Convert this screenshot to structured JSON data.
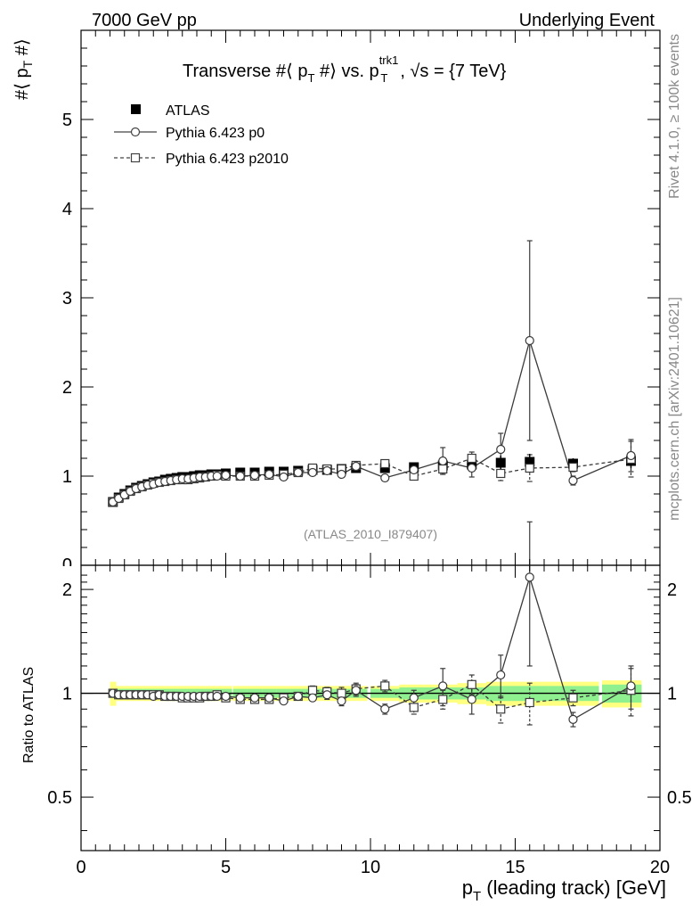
{
  "header": {
    "left": "7000 GeV pp",
    "right": "Underlying Event"
  },
  "side": {
    "rivet": "Rivet 4.1.0, ≥ 100k events",
    "site": "mcplots.cern.ch [arXiv:2401.10621]"
  },
  "watermark": "(ATLAS_2010_I879407)",
  "title": {
    "part1": "Transverse #⟨ p",
    "part1_sub": "T",
    "part2": " #⟩ vs. p",
    "sup": "trk1",
    "sub": "T",
    "part3": ", √s = {7 TeV}"
  },
  "main_ylabel": {
    "a": "#⟨ p",
    "sub": "T",
    "b": " #⟩"
  },
  "ratio_ylabel": "Ratio to ATLAS",
  "xlabel": {
    "a": "p",
    "sub": "T",
    "b": " (leading track) [GeV]"
  },
  "legend": [
    {
      "label": "ATLAS",
      "style": "data"
    },
    {
      "label": "Pythia 6.423 p0",
      "style": "circle-solid"
    },
    {
      "label": "Pythia 6.423 p2010",
      "style": "square-dashed"
    }
  ],
  "chart_data": [
    {
      "type": "line",
      "panel": "main",
      "title": "Transverse #⟨ pT #⟩ vs. pT^trk1, √s = {7 TeV}",
      "xlabel": "pT (leading track) [GeV]",
      "ylabel": "#⟨ pT #⟩",
      "xlim": [
        0,
        20
      ],
      "ylim": [
        0,
        6
      ],
      "yticks": [
        1,
        2,
        3,
        4,
        5
      ],
      "ytick_labels": [
        "1",
        "2",
        "3",
        "4",
        "5"
      ],
      "xticks": [
        0,
        5,
        10,
        15,
        20
      ],
      "xtick_labels": [
        "0",
        "5",
        "10",
        "15",
        "20"
      ],
      "x": [
        1.1,
        1.3,
        1.5,
        1.7,
        1.9,
        2.1,
        2.3,
        2.5,
        2.7,
        2.9,
        3.1,
        3.3,
        3.5,
        3.7,
        3.9,
        4.1,
        4.3,
        4.5,
        4.7,
        5.0,
        5.5,
        6.0,
        6.5,
        7.0,
        7.5,
        8.0,
        8.5,
        9.0,
        9.5,
        10.5,
        11.5,
        12.5,
        13.5,
        14.5,
        15.5,
        17.0,
        19.0
      ],
      "series": [
        {
          "name": "ATLAS",
          "values": [
            0.71,
            0.76,
            0.8,
            0.84,
            0.87,
            0.89,
            0.91,
            0.93,
            0.94,
            0.96,
            0.97,
            0.98,
            0.99,
            0.99,
            1.0,
            1.01,
            1.01,
            1.02,
            1.02,
            1.03,
            1.04,
            1.04,
            1.05,
            1.05,
            1.06,
            1.07,
            1.07,
            1.08,
            1.09,
            1.09,
            1.1,
            1.12,
            1.13,
            1.15,
            1.16,
            1.14,
            1.17
          ],
          "errors": [
            0.02,
            0.02,
            0.02,
            0.02,
            0.02,
            0.02,
            0.02,
            0.02,
            0.02,
            0.02,
            0.02,
            0.02,
            0.02,
            0.02,
            0.02,
            0.02,
            0.02,
            0.02,
            0.02,
            0.02,
            0.02,
            0.02,
            0.02,
            0.02,
            0.02,
            0.02,
            0.02,
            0.02,
            0.03,
            0.03,
            0.04,
            0.05,
            0.06,
            0.08,
            0.09,
            0.06,
            0.08
          ]
        },
        {
          "name": "Pythia 6.423 p0",
          "values": [
            0.71,
            0.75,
            0.79,
            0.83,
            0.86,
            0.88,
            0.9,
            0.91,
            0.93,
            0.94,
            0.95,
            0.96,
            0.97,
            0.97,
            0.98,
            0.99,
            0.99,
            1.0,
            1.0,
            1.01,
            1.0,
            1.01,
            1.02,
            0.99,
            1.04,
            1.04,
            1.06,
            1.02,
            1.11,
            0.98,
            1.07,
            1.17,
            1.09,
            1.3,
            2.52,
            0.95,
            1.23
          ],
          "errors": [
            0.01,
            0.01,
            0.01,
            0.01,
            0.01,
            0.01,
            0.01,
            0.01,
            0.01,
            0.01,
            0.01,
            0.01,
            0.01,
            0.01,
            0.01,
            0.01,
            0.01,
            0.01,
            0.01,
            0.01,
            0.01,
            0.01,
            0.02,
            0.02,
            0.03,
            0.03,
            0.03,
            0.03,
            0.04,
            0.03,
            0.06,
            0.15,
            0.1,
            0.18,
            1.12,
            0.05,
            0.18
          ]
        },
        {
          "name": "Pythia 6.423 p2010",
          "values": [
            0.71,
            0.75,
            0.79,
            0.83,
            0.86,
            0.88,
            0.9,
            0.92,
            0.93,
            0.94,
            0.95,
            0.96,
            0.96,
            0.96,
            0.97,
            0.98,
            0.99,
            1.0,
            1.01,
            1.0,
            1.0,
            1.0,
            1.01,
            1.02,
            1.04,
            1.09,
            1.08,
            1.08,
            1.12,
            1.14,
            1.0,
            1.08,
            1.2,
            1.03,
            1.09,
            1.1,
            1.19
          ],
          "errors": [
            0.01,
            0.01,
            0.01,
            0.01,
            0.01,
            0.01,
            0.01,
            0.01,
            0.01,
            0.01,
            0.01,
            0.01,
            0.01,
            0.01,
            0.01,
            0.01,
            0.01,
            0.01,
            0.01,
            0.01,
            0.01,
            0.01,
            0.02,
            0.02,
            0.02,
            0.03,
            0.03,
            0.04,
            0.04,
            0.04,
            0.04,
            0.06,
            0.07,
            0.08,
            0.15,
            0.05,
            0.2
          ]
        }
      ]
    },
    {
      "type": "line",
      "panel": "ratio",
      "xlabel": "pT (leading track) [GeV]",
      "ylabel": "Ratio to ATLAS",
      "xlim": [
        0,
        20
      ],
      "ylim": [
        0.35,
        2.35
      ],
      "yscale": "log",
      "yticks": [
        0.5,
        1,
        2
      ],
      "ytick_labels": [
        "0.5",
        "1",
        "2"
      ],
      "reference_line": 1,
      "band": {
        "x": [
          1.1,
          1.3,
          1.5,
          1.7,
          1.9,
          2.1,
          2.3,
          2.5,
          2.7,
          2.9,
          3.1,
          3.3,
          3.5,
          3.7,
          3.9,
          4.1,
          4.3,
          4.5,
          4.7,
          5.0,
          5.5,
          6.0,
          6.5,
          7.0,
          7.5,
          8.0,
          8.5,
          9.0,
          9.5,
          10.5,
          11.5,
          12.5,
          13.5,
          14.5,
          15.5,
          17.0,
          19.0
        ],
        "stat": [
          0.03,
          0.03,
          0.03,
          0.03,
          0.03,
          0.03,
          0.03,
          0.03,
          0.03,
          0.03,
          0.03,
          0.03,
          0.03,
          0.03,
          0.03,
          0.03,
          0.03,
          0.03,
          0.03,
          0.03,
          0.03,
          0.03,
          0.03,
          0.03,
          0.03,
          0.03,
          0.03,
          0.03,
          0.03,
          0.03,
          0.04,
          0.04,
          0.04,
          0.05,
          0.05,
          0.05,
          0.06
        ],
        "total": [
          0.08,
          0.05,
          0.05,
          0.05,
          0.05,
          0.05,
          0.05,
          0.05,
          0.05,
          0.05,
          0.05,
          0.05,
          0.05,
          0.05,
          0.05,
          0.05,
          0.05,
          0.05,
          0.05,
          0.05,
          0.05,
          0.05,
          0.05,
          0.05,
          0.05,
          0.05,
          0.05,
          0.05,
          0.05,
          0.05,
          0.06,
          0.06,
          0.07,
          0.08,
          0.08,
          0.08,
          0.09
        ]
      },
      "x": [
        1.1,
        1.3,
        1.5,
        1.7,
        1.9,
        2.1,
        2.3,
        2.5,
        2.7,
        2.9,
        3.1,
        3.3,
        3.5,
        3.7,
        3.9,
        4.1,
        4.3,
        4.5,
        4.7,
        5.0,
        5.5,
        6.0,
        6.5,
        7.0,
        7.5,
        8.0,
        8.5,
        9.0,
        9.5,
        10.5,
        11.5,
        12.5,
        13.5,
        14.5,
        15.5,
        17.0,
        19.0
      ],
      "series": [
        {
          "name": "Pythia 6.423 p0",
          "values": [
            1.0,
            0.99,
            0.99,
            0.99,
            0.99,
            0.99,
            0.99,
            0.98,
            0.99,
            0.98,
            0.98,
            0.98,
            0.98,
            0.98,
            0.98,
            0.98,
            0.98,
            0.98,
            0.98,
            0.98,
            0.97,
            0.97,
            0.97,
            0.95,
            0.98,
            0.97,
            0.99,
            0.95,
            1.02,
            0.9,
            0.97,
            1.05,
            0.96,
            1.13,
            2.17,
            0.84,
            1.05
          ],
          "errors": [
            0.01,
            0.01,
            0.01,
            0.01,
            0.01,
            0.01,
            0.01,
            0.01,
            0.01,
            0.01,
            0.01,
            0.01,
            0.01,
            0.01,
            0.01,
            0.01,
            0.01,
            0.01,
            0.01,
            0.01,
            0.01,
            0.01,
            0.02,
            0.02,
            0.02,
            0.02,
            0.03,
            0.03,
            0.04,
            0.03,
            0.05,
            0.13,
            0.09,
            0.16,
            0.97,
            0.04,
            0.15
          ]
        },
        {
          "name": "Pythia 6.423 p2010",
          "values": [
            1.0,
            0.99,
            0.99,
            0.99,
            0.99,
            0.99,
            0.99,
            0.99,
            0.99,
            0.98,
            0.98,
            0.98,
            0.97,
            0.97,
            0.97,
            0.97,
            0.98,
            0.98,
            0.99,
            0.97,
            0.96,
            0.96,
            0.96,
            0.97,
            0.98,
            1.02,
            1.01,
            1.0,
            1.03,
            1.05,
            0.91,
            0.96,
            1.06,
            0.9,
            0.94,
            0.97,
            1.02
          ],
          "errors": [
            0.01,
            0.01,
            0.01,
            0.01,
            0.01,
            0.01,
            0.01,
            0.01,
            0.01,
            0.01,
            0.01,
            0.01,
            0.01,
            0.01,
            0.01,
            0.01,
            0.01,
            0.01,
            0.01,
            0.01,
            0.01,
            0.01,
            0.02,
            0.02,
            0.02,
            0.03,
            0.03,
            0.04,
            0.04,
            0.04,
            0.04,
            0.06,
            0.07,
            0.08,
            0.13,
            0.05,
            0.16
          ]
        }
      ]
    }
  ]
}
